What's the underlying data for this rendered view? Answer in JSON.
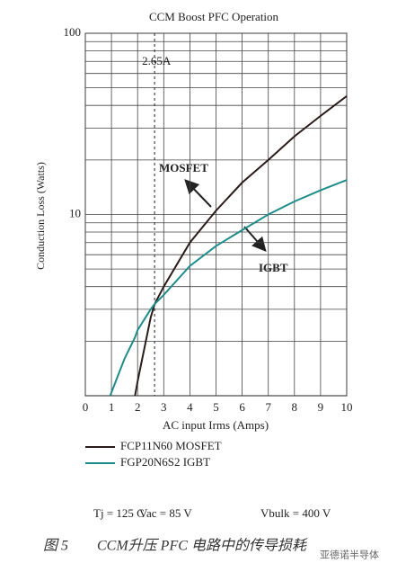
{
  "chart_data": {
    "type": "line",
    "title": "CCM Boost PFC Operation",
    "x_label": "AC input Irms (Amps)",
    "y_label": "Conduction Loss (Watts)",
    "x": [
      0.95,
      1.5,
      1.9,
      2,
      2.5,
      2.65,
      3,
      4,
      5,
      6,
      7,
      8,
      9,
      10
    ],
    "series": [
      {
        "name": "FCP11N60 MOSFET",
        "color": "#2b1b1b",
        "values": [
          null,
          null,
          1.0,
          1.2,
          2.7,
          3.2,
          4.0,
          7.0,
          10.5,
          15,
          20,
          27,
          35,
          45
        ]
      },
      {
        "name": "FGP20N6S2 IGBT",
        "color": "#1f8c8c",
        "values": [
          1.0,
          1.6,
          2.1,
          2.3,
          3.0,
          3.2,
          3.6,
          5.2,
          6.7,
          8.2,
          10,
          11.8,
          13.6,
          15.5
        ]
      }
    ],
    "xlim": [
      0,
      10
    ],
    "xticks": [
      0,
      1,
      2,
      3,
      4,
      5,
      6,
      7,
      8,
      9,
      10
    ],
    "ylim": [
      1,
      100
    ],
    "yticks": [
      10,
      100
    ],
    "y_log": true,
    "y_minor_ticks": [
      2,
      3,
      4,
      5,
      6,
      7,
      8,
      9,
      20,
      30,
      40,
      50,
      60,
      70,
      80,
      90
    ],
    "grid": true,
    "vline": {
      "x": 2.65,
      "label": "2.65A"
    },
    "annotations": [
      "MOSFET",
      "IGBT"
    ],
    "conditions": [
      "Tj = 125 C",
      "Vac = 85 V",
      "Vbulk = 400 V"
    ],
    "caption": "图 5　　CCM升压 PFC 电路中的传导损耗",
    "watermark": "亚德诺半导体"
  }
}
